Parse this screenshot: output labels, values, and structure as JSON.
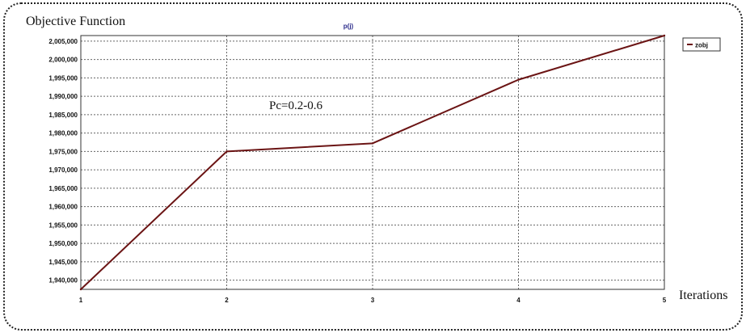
{
  "chart_data": {
    "type": "line",
    "title": "p(j)",
    "ylabel": "Objective Function",
    "xlabel": "Iterations",
    "annotation": "Pc=0.2-0.6",
    "x": [
      1,
      2,
      3,
      4,
      5
    ],
    "xticks": [
      "1",
      "2",
      "3",
      "4",
      "5"
    ],
    "ylim": [
      1937500,
      2006500
    ],
    "yticks": [
      1940000,
      1945000,
      1950000,
      1955000,
      1960000,
      1965000,
      1970000,
      1975000,
      1980000,
      1985000,
      1990000,
      1995000,
      2000000,
      2005000
    ],
    "ytick_labels": [
      "1,940,000",
      "1,945,000",
      "1,950,000",
      "1,955,000",
      "1,960,000",
      "1,965,000",
      "1,970,000",
      "1,975,000",
      "1,980,000",
      "1,985,000",
      "1,990,000",
      "1,995,000",
      "2,000,000",
      "2,005,000"
    ],
    "series": [
      {
        "name": "zobj",
        "color": "#6b1414",
        "values": [
          1937500,
          1975000,
          1977200,
          1994500,
          2006500
        ]
      }
    ],
    "grid": "dotted",
    "legend_position": "top-right"
  }
}
